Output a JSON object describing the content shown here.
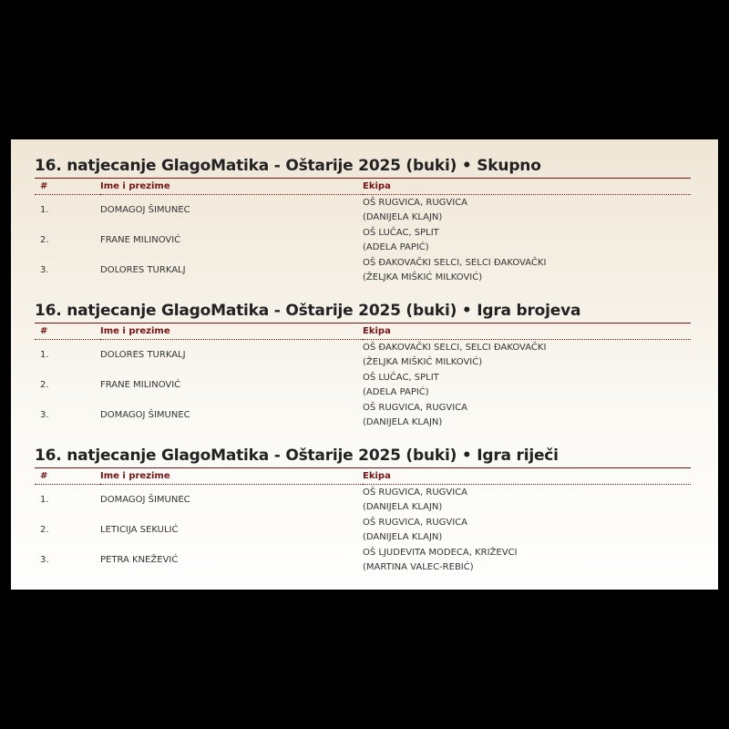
{
  "columns": {
    "rank": "#",
    "name": "Ime i prezime",
    "team": "Ekipa"
  },
  "sections": [
    {
      "title": "16. natjecanje GlagoMatika - Oštarije 2025 (buki) • Skupno",
      "rows": [
        {
          "rank": "1.",
          "name": "DOMAGOJ ŠIMUNEC",
          "school": "OŠ RUGVICA, RUGVICA",
          "mentor": "(DANIJELA KLAJN)"
        },
        {
          "rank": "2.",
          "name": "FRANE MILINOVIĆ",
          "school": "OŠ LUČAC, SPLIT",
          "mentor": "(ADELA PAPIĆ)"
        },
        {
          "rank": "3.",
          "name": "DOLORES TURKALJ",
          "school": "OŠ ĐAKOVAČKI SELCI, SELCI ĐAKOVAČKI",
          "mentor": "(ŽELJKA MIŠKIĆ MILKOVIĆ)"
        }
      ]
    },
    {
      "title": "16. natjecanje GlagoMatika - Oštarije 2025 (buki) • Igra brojeva",
      "rows": [
        {
          "rank": "1.",
          "name": "DOLORES TURKALJ",
          "school": "OŠ ĐAKOVAČKI SELCI, SELCI ĐAKOVAČKI",
          "mentor": "(ŽELJKA MIŠKIĆ MILKOVIĆ)"
        },
        {
          "rank": "2.",
          "name": "FRANE MILINOVIĆ",
          "school": "OŠ LUČAC, SPLIT",
          "mentor": "(ADELA PAPIĆ)"
        },
        {
          "rank": "3.",
          "name": "DOMAGOJ ŠIMUNEC",
          "school": "OŠ RUGVICA, RUGVICA",
          "mentor": "(DANIJELA KLAJN)"
        }
      ]
    },
    {
      "title": "16. natjecanje GlagoMatika - Oštarije 2025 (buki) • Igra riječi",
      "rows": [
        {
          "rank": "1.",
          "name": "DOMAGOJ ŠIMUNEC",
          "school": "OŠ RUGVICA, RUGVICA",
          "mentor": "(DANIJELA KLAJN)"
        },
        {
          "rank": "2.",
          "name": "LETICIJA SEKULIĆ",
          "school": "OŠ RUGVICA, RUGVICA",
          "mentor": "(DANIJELA KLAJN)"
        },
        {
          "rank": "3.",
          "name": "PETRA KNEŽEVIĆ",
          "school": "OŠ LJUDEVITA MODECA, KRIŽEVCI",
          "mentor": "(MARTINA VALEC-REBIĆ)"
        }
      ]
    }
  ]
}
